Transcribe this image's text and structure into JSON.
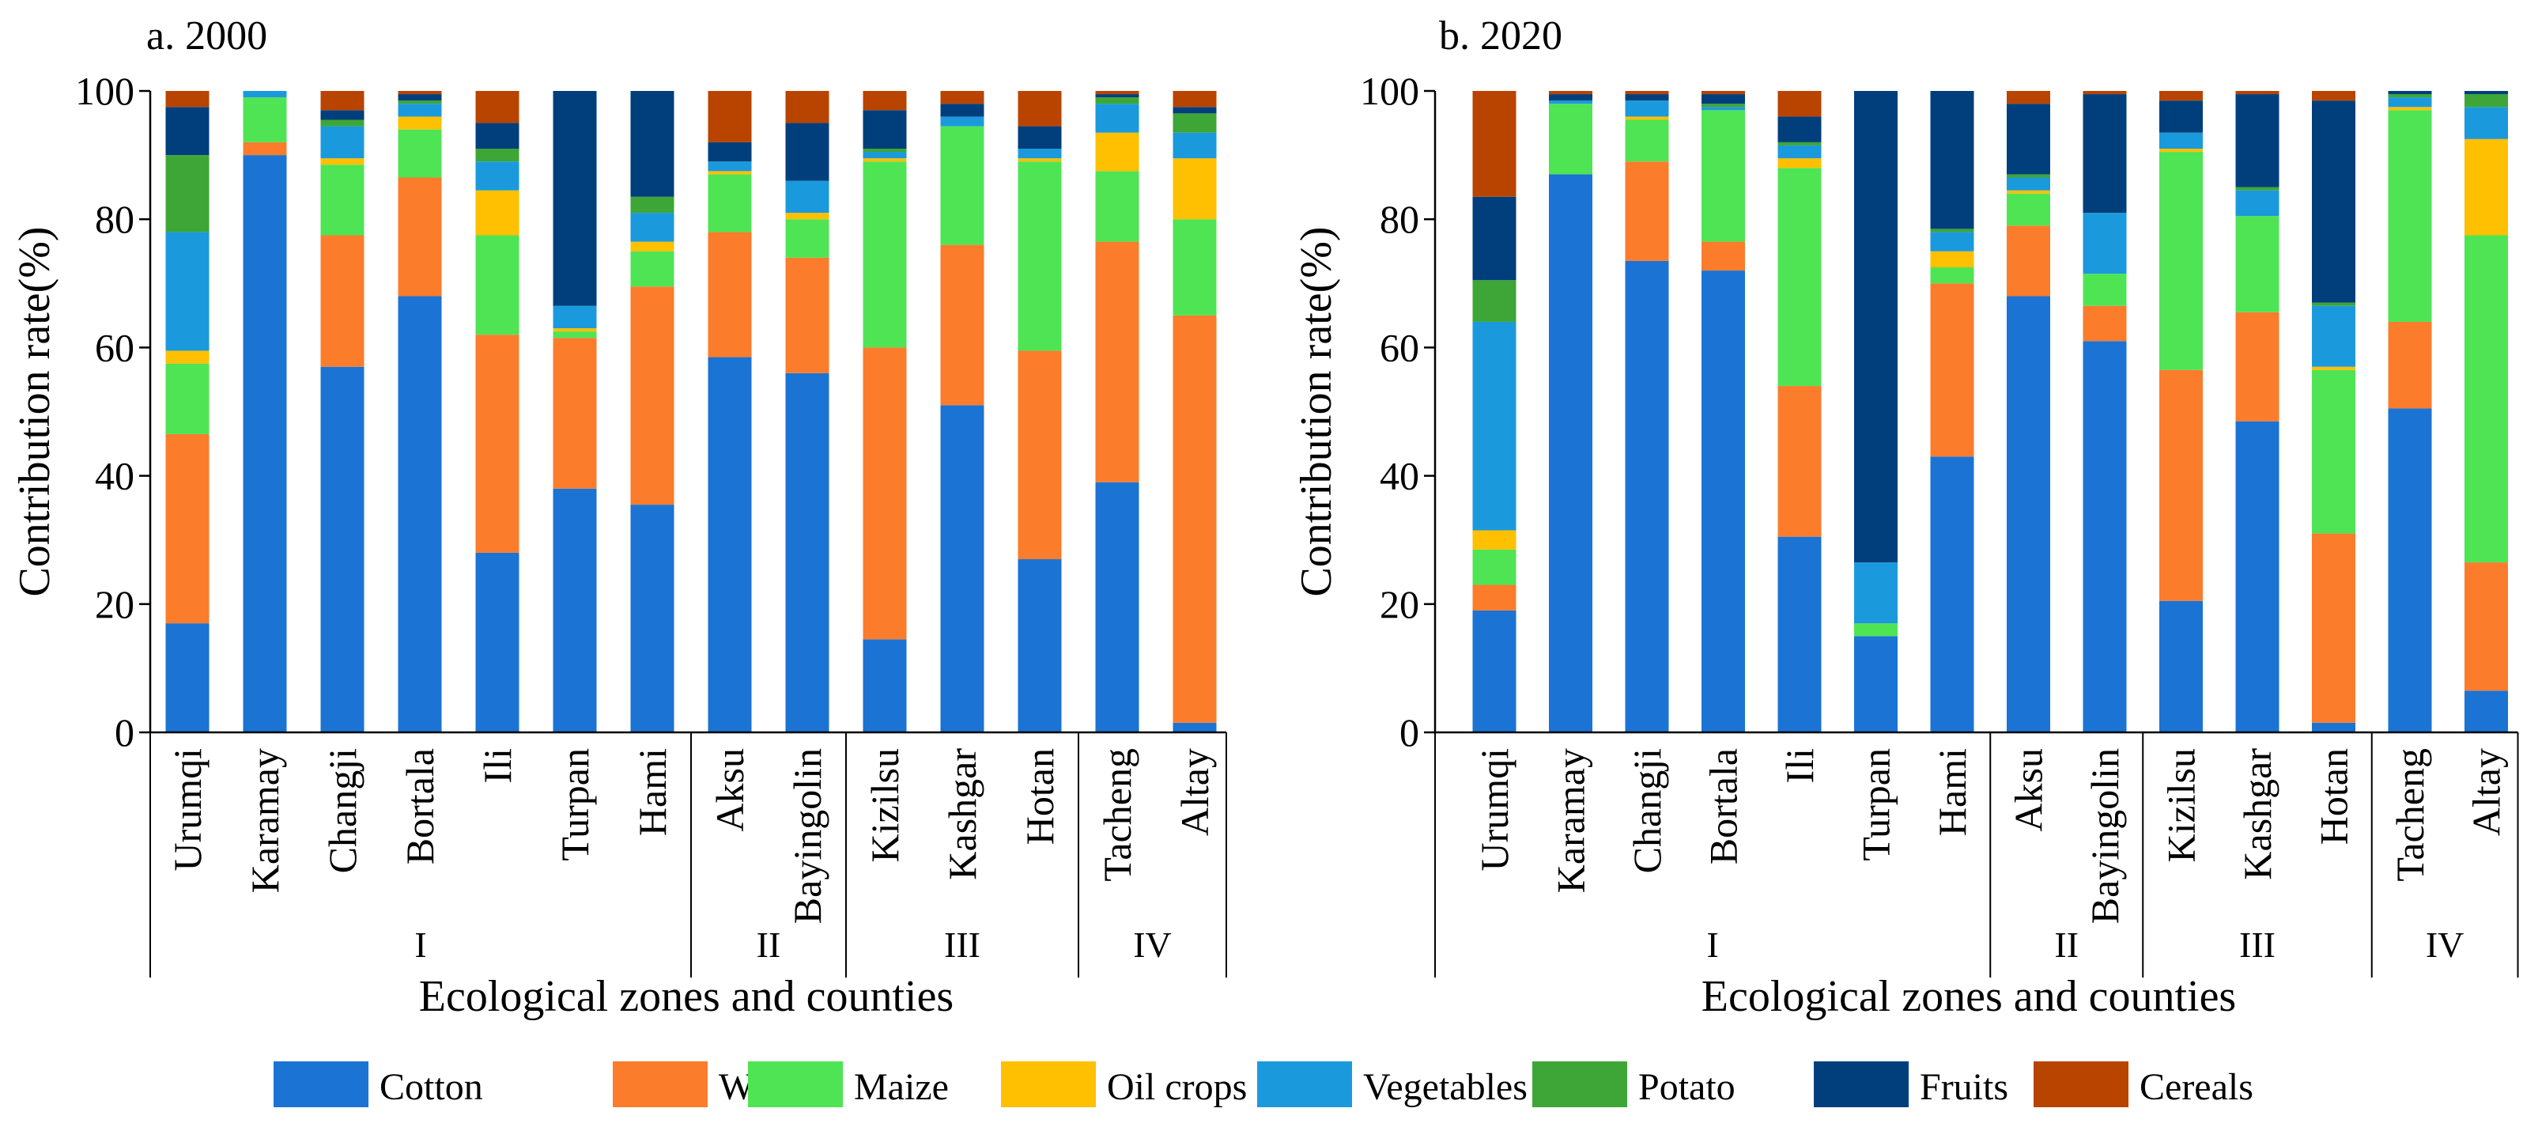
{
  "figure": {
    "legend": [
      {
        "name": "Cotton",
        "color": "#1b73d3"
      },
      {
        "name": "Wheat",
        "color": "#fb7c2b"
      },
      {
        "name": "Maize",
        "color": "#4fe454"
      },
      {
        "name": "Oil crops",
        "color": "#fec000"
      },
      {
        "name": "Vegetables",
        "color": "#1a9adc"
      },
      {
        "name": "Potato",
        "color": "#3ea636"
      },
      {
        "name": "Fruits",
        "color": "#003f7b"
      },
      {
        "name": "Cereals",
        "color": "#b84400"
      }
    ]
  },
  "chart_data": [
    {
      "type": "bar",
      "stacked": true,
      "title": "a. 2000",
      "xlabel": "Ecological zones and counties",
      "ylabel": "Contribution rate(%)",
      "ylim": [
        0,
        100
      ],
      "yticks": [
        0,
        20,
        40,
        60,
        80,
        100
      ],
      "categories": [
        "Urumqi",
        "Karamay",
        "Changji",
        "Bortala",
        "Ili",
        "Turpan",
        "Hami",
        "Aksu",
        "Bayingolin",
        "Kizilsu",
        "Kashgar",
        "Hotan",
        "Tacheng",
        "Altay"
      ],
      "zones": [
        {
          "label": "I",
          "start": 0,
          "end": 6
        },
        {
          "label": "II",
          "start": 7,
          "end": 8
        },
        {
          "label": "III",
          "start": 9,
          "end": 11
        },
        {
          "label": "IV",
          "start": 12,
          "end": 13
        }
      ],
      "series": [
        {
          "name": "Cotton",
          "values": [
            17,
            90,
            57,
            68,
            28,
            38,
            35.5,
            58.5,
            56,
            14.5,
            51,
            27,
            39,
            1.5
          ]
        },
        {
          "name": "Wheat",
          "values": [
            29.5,
            2,
            20.5,
            18.5,
            34,
            23.5,
            34,
            19.5,
            18,
            45.5,
            25,
            32.5,
            37.5,
            63.5
          ]
        },
        {
          "name": "Maize",
          "values": [
            11,
            7,
            11,
            7.5,
            15.5,
            1,
            5.5,
            9,
            6,
            29,
            18.5,
            29.5,
            11,
            15
          ]
        },
        {
          "name": "Oil crops",
          "values": [
            2,
            0,
            1,
            2,
            7,
            0.5,
            1.5,
            0.5,
            1,
            0.5,
            0,
            0.5,
            6,
            9.5
          ]
        },
        {
          "name": "Vegetables",
          "values": [
            18.5,
            1,
            5,
            2,
            4.5,
            3.5,
            4.5,
            1.5,
            5,
            1,
            1.5,
            1.5,
            4.5,
            4
          ]
        },
        {
          "name": "Potato",
          "values": [
            12,
            0,
            1,
            0.5,
            2,
            0,
            2.5,
            0,
            0,
            0.5,
            0,
            0,
            1,
            3
          ]
        },
        {
          "name": "Fruits",
          "values": [
            7.5,
            0,
            1.5,
            1,
            4,
            33.5,
            16.5,
            3,
            9,
            6,
            2,
            3.5,
            0.5,
            1
          ]
        },
        {
          "name": "Cereals",
          "values": [
            2.5,
            0,
            3,
            0.5,
            5,
            0,
            0,
            8,
            5,
            3,
            2,
            5.5,
            0.5,
            2.5
          ]
        }
      ]
    },
    {
      "type": "bar",
      "stacked": true,
      "title": "b. 2020",
      "xlabel": "Ecological zones and counties",
      "ylabel": "Contribution rate(%)",
      "ylim": [
        0,
        100
      ],
      "yticks": [
        0,
        20,
        40,
        60,
        80,
        100
      ],
      "categories": [
        "Urumqi",
        "Karamay",
        "Changji",
        "Bortala",
        "Ili",
        "Turpan",
        "Hami",
        "Aksu",
        "Bayingolin",
        "Kizilsu",
        "Kashgar",
        "Hotan",
        "Tacheng",
        "Altay"
      ],
      "zones": [
        {
          "label": "I",
          "start": 0,
          "end": 6
        },
        {
          "label": "II",
          "start": 7,
          "end": 8
        },
        {
          "label": "III",
          "start": 9,
          "end": 11
        },
        {
          "label": "IV",
          "start": 12,
          "end": 13
        }
      ],
      "series": [
        {
          "name": "Cotton",
          "values": [
            19,
            87,
            73.5,
            72,
            30.5,
            15,
            43,
            68,
            61,
            20.5,
            48.5,
            1.5,
            50.5,
            6.5
          ]
        },
        {
          "name": "Wheat",
          "values": [
            4,
            0,
            15.5,
            4.5,
            23.5,
            0,
            27,
            11,
            5.5,
            36,
            17,
            29.5,
            13.5,
            20
          ]
        },
        {
          "name": "Maize",
          "values": [
            5.5,
            11,
            6.5,
            20.5,
            34,
            2,
            2.5,
            5,
            5,
            34,
            15,
            25.5,
            33,
            51
          ]
        },
        {
          "name": "Oil crops",
          "values": [
            3,
            0,
            0.5,
            0,
            1.5,
            0,
            2.5,
            0.5,
            0,
            0.5,
            0,
            0.5,
            0.5,
            15
          ]
        },
        {
          "name": "Vegetables",
          "values": [
            32.5,
            0.5,
            2.5,
            0.5,
            2,
            9.5,
            3,
            2,
            9.5,
            2.5,
            4,
            9.5,
            1.5,
            5
          ]
        },
        {
          "name": "Potato",
          "values": [
            6.5,
            0,
            0,
            0.5,
            0.5,
            0,
            0.5,
            0.5,
            0,
            0,
            0.5,
            0.5,
            0.5,
            2
          ]
        },
        {
          "name": "Fruits",
          "values": [
            13,
            1,
            1,
            1.5,
            4,
            73.5,
            21.5,
            11,
            18.5,
            5,
            14.5,
            31.5,
            0.5,
            0.5
          ]
        },
        {
          "name": "Cereals",
          "values": [
            16.5,
            0.5,
            0.5,
            0.5,
            4,
            0,
            0,
            2,
            0.5,
            1.5,
            0.5,
            1.5,
            0,
            0
          ]
        }
      ]
    }
  ]
}
